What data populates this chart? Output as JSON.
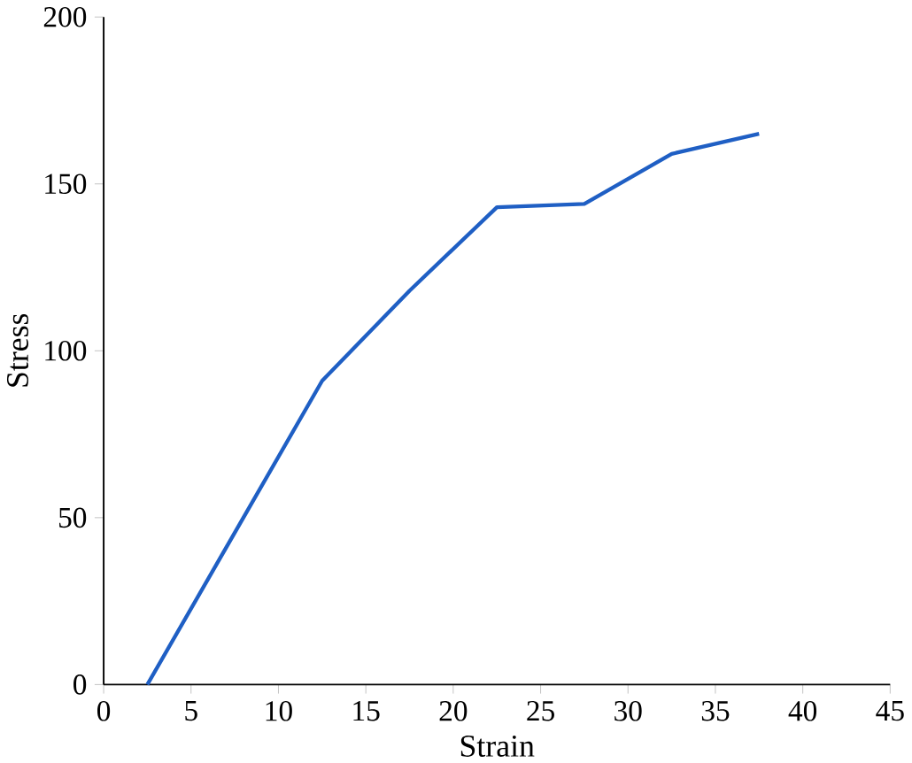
{
  "chart_data": {
    "type": "line",
    "xlabel": "Strain",
    "ylabel": "Stress",
    "x": [
      2.5,
      12.5,
      17.5,
      22.5,
      27.5,
      32.5,
      37.5
    ],
    "series": [
      {
        "color": "#1f5fc4",
        "values": [
          0,
          91,
          118,
          143,
          144,
          159,
          165
        ]
      }
    ],
    "xlim": [
      0,
      45
    ],
    "ylim": [
      0,
      200
    ],
    "xticks": [
      0,
      5,
      10,
      15,
      20,
      25,
      30,
      35,
      40,
      45
    ],
    "yticks": [
      0,
      50,
      100,
      150,
      200
    ],
    "grid": false,
    "marker": "none",
    "line_style": "solid"
  }
}
